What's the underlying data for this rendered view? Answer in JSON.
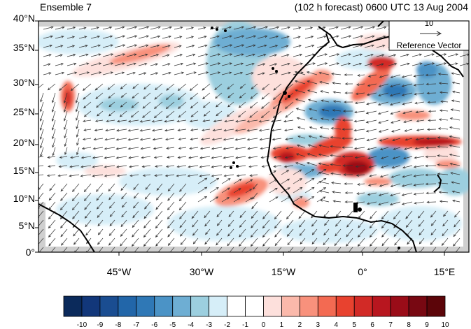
{
  "title": {
    "left": "Ensemble 7",
    "right": "(102 h forecast) 0600 UTC 13 Aug 2004"
  },
  "lat_labels": [
    "40°N",
    "35°N",
    "30°N",
    "25°N",
    "20°N",
    "15°N",
    "10°N",
    "5°N",
    "0°"
  ],
  "lon_labels": [
    "45°W",
    "30°W",
    "15°W",
    "0°",
    "15°E"
  ],
  "reference_vector": {
    "value": "10",
    "label": "Reference Vector"
  },
  "colorbar": {
    "labels": [
      "-10",
      "-9",
      "-8",
      "-7",
      "-6",
      "-5",
      "-4",
      "-3",
      "-2",
      "-1",
      "0",
      "1",
      "2",
      "3",
      "4",
      "5",
      "6",
      "7",
      "8",
      "9",
      "10"
    ],
    "colors": [
      "#0b2a5b",
      "#12377a",
      "#1a4d91",
      "#2266a9",
      "#2f78b6",
      "#4b93c6",
      "#6eaed3",
      "#9ccfdf",
      "#d6eef8",
      "#ffffff",
      "#ffffff",
      "#fde0dc",
      "#fbb9ab",
      "#f8917c",
      "#f36a52",
      "#e8422f",
      "#d22a26",
      "#b8161f",
      "#9a0c18",
      "#780812",
      "#5c0509"
    ]
  },
  "colors": {
    "land_mask": "#cfcfcf",
    "coast": "#000000",
    "arrow": "#333333"
  }
}
